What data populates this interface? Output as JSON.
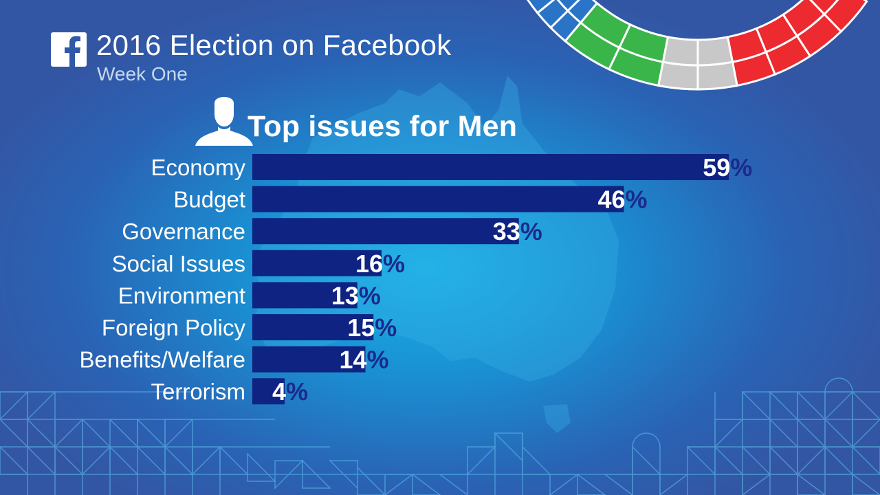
{
  "header": {
    "title": "2016 Election on Facebook",
    "subtitle": "Week One"
  },
  "icons": {
    "logo": "facebook-logo-icon",
    "person": "person-silhouette-icon"
  },
  "colors": {
    "bar": "#0e2382",
    "percent_sign": "#1a2a8c",
    "arc_blue": "#2a74c8",
    "arc_green": "#3ab54a",
    "arc_grey": "#c8c8c8",
    "arc_red": "#ec2a2f"
  },
  "chart_data": {
    "type": "bar",
    "orientation": "horizontal",
    "title": "Top issues for Men",
    "categories": [
      "Economy",
      "Budget",
      "Governance",
      "Social Issues",
      "Environment",
      "Foreign Policy",
      "Benefits/Welfare",
      "Terrorism"
    ],
    "values": [
      59,
      46,
      33,
      16,
      13,
      15,
      14,
      4
    ],
    "value_suffix": "%",
    "xlim": [
      0,
      100
    ],
    "grid": false,
    "legend": "none"
  }
}
